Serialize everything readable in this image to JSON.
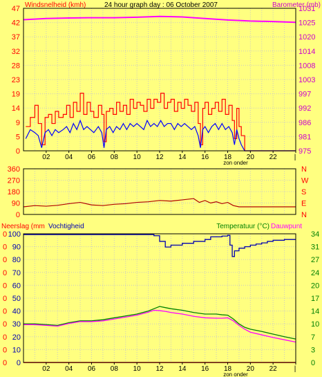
{
  "header": {
    "title": "24 hour graph day : 06 October 2007",
    "left_label": "Windsnelheid (kmh)",
    "right_label": "Barometer (mb)"
  },
  "colors": {
    "background": "#ffff80",
    "frame": "#000000",
    "grid": "#c8c8c8",
    "wind": "#0000ff",
    "gust": "#ff0000",
    "barometer": "#ff00ff",
    "direction": "#b00000",
    "rain": "#ff0000",
    "humidity": "#0000b0",
    "temperature": "#008000",
    "dewpoint": "#ff00ff",
    "title_text": "#000000",
    "red_text": "#ff0000",
    "magenta_text": "#cc00cc",
    "green_text": "#008000"
  },
  "chart_data": [
    {
      "type": "line",
      "title": "24 hour graph day : 06 October 2007",
      "ylabel": "Windsnelheid (kmh)",
      "y2label": "Barometer (mb)",
      "x_ticks": [
        "02",
        "04",
        "06",
        "08",
        "10",
        "12",
        "14",
        "16",
        "18",
        "20",
        "22"
      ],
      "x_annotation": "zon onder",
      "ylim": [
        0,
        47
      ],
      "y_ticks": [
        "47",
        "42",
        "37",
        "32",
        "28",
        "23",
        "19",
        "14",
        "9",
        "5",
        "0"
      ],
      "y2lim": [
        975,
        1031
      ],
      "y2_ticks": [
        "1031",
        "1025",
        "1020",
        "1014",
        "1008",
        "1003",
        "997",
        "992",
        "986",
        "981",
        "975"
      ],
      "grid": true,
      "series": [
        {
          "key": "gust",
          "axis": "y",
          "x": [
            0.2,
            0.6,
            1.0,
            1.3,
            1.6,
            1.9,
            2.2,
            2.5,
            2.8,
            3.1,
            3.5,
            3.8,
            4.1,
            4.4,
            4.7,
            5.0,
            5.3,
            5.6,
            5.9,
            6.2,
            6.6,
            6.9,
            7.1,
            7.3,
            7.6,
            7.9,
            8.2,
            8.5,
            8.8,
            9.1,
            9.4,
            9.7,
            10.0,
            10.3,
            10.6,
            10.9,
            11.2,
            11.5,
            11.8,
            12.1,
            12.4,
            12.7,
            13.0,
            13.3,
            13.6,
            13.9,
            14.2,
            14.5,
            14.8,
            15.1,
            15.4,
            15.6,
            15.8,
            16.0,
            16.3,
            16.6,
            16.9,
            17.2,
            17.5,
            17.8,
            18.1,
            18.4,
            18.6,
            18.8,
            19.0,
            19.2,
            19.5,
            20.0,
            21.0,
            22.0,
            23.0,
            24.0
          ],
          "y": [
            8,
            11,
            15,
            9,
            2,
            11,
            12,
            9,
            13,
            11,
            12,
            15,
            11,
            16,
            13,
            19,
            12,
            16,
            13,
            11,
            15,
            12,
            3,
            13,
            14,
            12,
            16,
            13,
            15,
            12,
            17,
            14,
            16,
            15,
            13,
            17,
            14,
            17,
            16,
            19,
            14,
            16,
            17,
            13,
            16,
            14,
            17,
            15,
            13,
            16,
            9,
            2,
            14,
            16,
            12,
            14,
            16,
            13,
            17,
            12,
            15,
            10,
            4,
            14,
            8,
            5,
            0,
            0,
            0,
            0,
            0,
            0
          ]
        },
        {
          "key": "wind",
          "axis": "y",
          "x": [
            0.2,
            0.6,
            1.0,
            1.3,
            1.6,
            1.9,
            2.2,
            2.5,
            2.8,
            3.1,
            3.5,
            3.8,
            4.1,
            4.4,
            4.7,
            5.0,
            5.3,
            5.6,
            5.9,
            6.2,
            6.6,
            6.9,
            7.1,
            7.3,
            7.6,
            7.9,
            8.2,
            8.5,
            8.8,
            9.1,
            9.4,
            9.7,
            10.0,
            10.3,
            10.6,
            10.9,
            11.2,
            11.5,
            11.8,
            12.1,
            12.4,
            12.7,
            13.0,
            13.3,
            13.6,
            13.9,
            14.2,
            14.5,
            14.8,
            15.1,
            15.4,
            15.6,
            15.8,
            16.0,
            16.3,
            16.6,
            16.9,
            17.2,
            17.5,
            17.8,
            18.1,
            18.4,
            18.6,
            18.8,
            19.0,
            19.2,
            19.5,
            20.0,
            21.0,
            22.0,
            23.0,
            24.0
          ],
          "y": [
            4,
            7,
            6,
            5,
            1,
            6,
            7,
            5,
            7,
            6,
            7,
            8,
            6,
            9,
            7,
            10,
            7,
            8,
            7,
            6,
            8,
            6,
            1,
            7,
            8,
            6,
            8,
            7,
            9,
            7,
            9,
            8,
            9,
            8,
            7,
            10,
            8,
            9,
            8,
            10,
            8,
            9,
            9,
            7,
            9,
            8,
            9,
            8,
            7,
            8,
            5,
            1,
            7,
            8,
            6,
            8,
            9,
            7,
            9,
            7,
            8,
            6,
            2,
            7,
            4,
            2,
            0,
            0,
            0,
            0,
            0,
            0
          ]
        },
        {
          "key": "barometer",
          "axis": "y2",
          "x": [
            0,
            2,
            4,
            6,
            8,
            10,
            12,
            14,
            16,
            18,
            20,
            22,
            24
          ],
          "y": [
            1026.5,
            1027.0,
            1027.2,
            1027.3,
            1027.3,
            1027.5,
            1027.8,
            1027.6,
            1027.0,
            1026.4,
            1026.0,
            1025.8,
            1025.5
          ]
        }
      ]
    },
    {
      "type": "line",
      "x_ticks": [],
      "ylim": [
        0,
        360
      ],
      "y_ticks": [
        "360",
        "270",
        "180",
        "90",
        "0"
      ],
      "y2_ticks": [
        "N",
        "W",
        "S",
        "E",
        "N"
      ],
      "grid": true,
      "series": [
        {
          "key": "direction",
          "x": [
            0,
            1,
            2,
            3,
            4,
            5,
            6,
            7,
            8,
            9,
            10,
            11,
            12,
            13,
            14,
            15,
            15.5,
            16,
            16.5,
            17,
            17.5,
            18,
            18.5,
            19,
            19.5,
            20,
            21,
            22,
            23,
            24
          ],
          "y": [
            60,
            70,
            65,
            72,
            85,
            95,
            75,
            70,
            80,
            85,
            95,
            100,
            110,
            105,
            115,
            125,
            95,
            110,
            90,
            100,
            85,
            95,
            70,
            60,
            60,
            60,
            60,
            60,
            60,
            60
          ]
        }
      ]
    },
    {
      "type": "line",
      "ylabel": "Neerslag (mm",
      "ylabel2": "Vochtigheid",
      "y2label": "Temperatuur (°C)",
      "y2label2": "Dauwpunt",
      "x_ticks": [
        "02",
        "04",
        "06",
        "08",
        "10",
        "12",
        "14",
        "16",
        "18",
        "20",
        "22"
      ],
      "x_annotation": "zon onder",
      "ylim": [
        0,
        34
      ],
      "y_left_ticks": [
        "0",
        "0",
        "0",
        "0",
        "0",
        "0",
        "0",
        "0",
        "0",
        "0",
        "0"
      ],
      "y_hum_ticks": [
        "100",
        "90",
        "80",
        "70",
        "60",
        "50",
        "40",
        "30",
        "20",
        "10",
        "0"
      ],
      "y_right_ticks": [
        "34",
        "31",
        "27",
        "24",
        "20",
        "17",
        "14",
        "10",
        "7",
        "3",
        "0"
      ],
      "grid": true,
      "series": [
        {
          "key": "humidity",
          "x": [
            0,
            2,
            4,
            6,
            8,
            10,
            11.5,
            12.0,
            12.5,
            13,
            14,
            15,
            16,
            16.5,
            17,
            17.5,
            18,
            18.2,
            18.4,
            18.6,
            19,
            19.5,
            20,
            20.5,
            21,
            21.5,
            22,
            23,
            24
          ],
          "y": [
            33.8,
            33.8,
            33.8,
            33.8,
            33.8,
            33.8,
            33.5,
            32.0,
            30.5,
            31.0,
            31.5,
            32.0,
            32.5,
            33.2,
            33.2,
            33.4,
            33.6,
            31.0,
            28.0,
            29.5,
            30.2,
            30.6,
            31.0,
            31.3,
            31.6,
            32.0,
            32.3,
            32.5,
            32.5
          ]
        },
        {
          "key": "temperature",
          "x": [
            0,
            1,
            2,
            3,
            4,
            5,
            6,
            7,
            8,
            9,
            10,
            11,
            11.5,
            12,
            12.5,
            13,
            14,
            15,
            16,
            17,
            17.5,
            18,
            18.5,
            19,
            19.5,
            20,
            21,
            22,
            23,
            24
          ],
          "y": [
            10.2,
            10.2,
            10.0,
            9.8,
            10.5,
            11.0,
            11.0,
            11.3,
            11.8,
            12.3,
            12.8,
            13.6,
            14.2,
            14.8,
            14.5,
            14.2,
            13.8,
            13.2,
            12.8,
            12.8,
            12.6,
            12.5,
            11.5,
            10.2,
            9.3,
            8.8,
            8.2,
            7.5,
            6.8,
            6.2
          ]
        },
        {
          "key": "dewpoint",
          "x": [
            0,
            1,
            2,
            3,
            4,
            5,
            6,
            7,
            8,
            9,
            10,
            11,
            11.5,
            12,
            12.5,
            13,
            14,
            15,
            16,
            17,
            17.5,
            18,
            18.5,
            19,
            19.5,
            20,
            21,
            22,
            23,
            24
          ],
          "y": [
            10.0,
            10.0,
            9.8,
            9.6,
            10.3,
            10.8,
            10.8,
            11.0,
            11.5,
            12.0,
            12.5,
            13.3,
            13.8,
            13.7,
            13.5,
            13.2,
            12.8,
            12.2,
            11.8,
            11.7,
            11.7,
            11.8,
            11.0,
            9.8,
            8.8,
            8.0,
            7.3,
            6.6,
            6.0,
            5.4
          ]
        },
        {
          "key": "rain",
          "x": [
            0,
            24
          ],
          "y": [
            0,
            0
          ]
        }
      ]
    }
  ]
}
